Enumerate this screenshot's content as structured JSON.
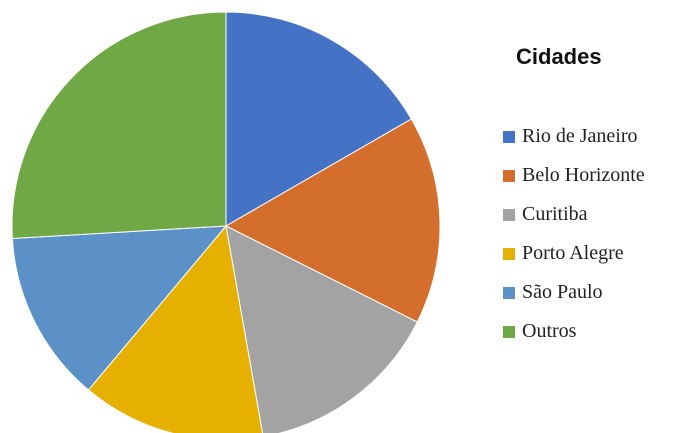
{
  "chart_data": {
    "type": "pie",
    "title": "",
    "legend_title": "Cidades",
    "legend_position": "right",
    "categories": [
      "Rio de Janeiro",
      "Belo Horizonte",
      "Curitiba",
      "Porto Alegre",
      "São Paulo",
      "Outros"
    ],
    "values": [
      18,
      17,
      16,
      15,
      14,
      28
    ],
    "colors": [
      "#4472c4",
      "#d46e2c",
      "#a3a3a3",
      "#e6b000",
      "#5b91c6",
      "#70a845"
    ]
  }
}
